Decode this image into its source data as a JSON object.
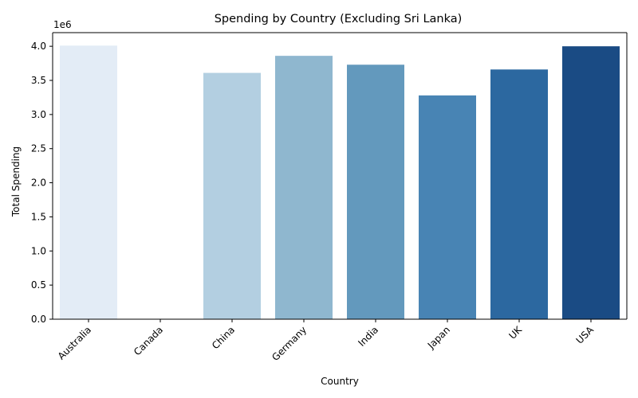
{
  "chart_data": {
    "type": "bar",
    "title": "Spending by Country (Excluding Sri Lanka)",
    "xlabel": "Country",
    "ylabel": "Total Spending",
    "y_offset_text": "1e6",
    "ylim": [
      0,
      4.2
    ],
    "y_ticks": [
      0.0,
      0.5,
      1.0,
      1.5,
      2.0,
      2.5,
      3.0,
      3.5,
      4.0
    ],
    "grid": false,
    "categories": [
      "Australia",
      "Canada",
      "China",
      "Germany",
      "India",
      "Japan",
      "UK",
      "USA"
    ],
    "values": [
      4.01,
      0.0,
      3.61,
      3.86,
      3.73,
      3.28,
      3.66,
      4.0
    ],
    "colors": [
      "#e3ecf6",
      "#c6dbef",
      "#b3cfe1",
      "#8fb7cf",
      "#6399bd",
      "#4884b4",
      "#2c68a0",
      "#1a4b84"
    ]
  }
}
